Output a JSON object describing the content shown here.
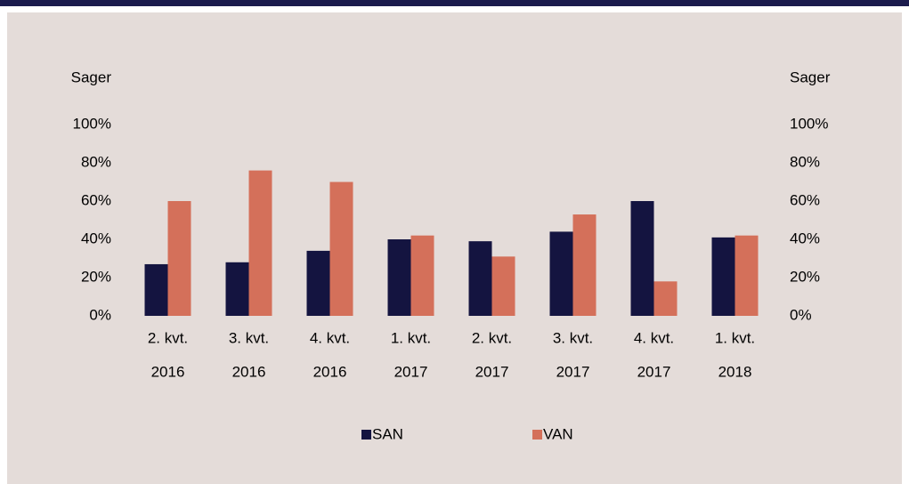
{
  "chart_data": {
    "type": "bar",
    "categories": [
      [
        "2. kvt.",
        "2016"
      ],
      [
        "3. kvt.",
        "2016"
      ],
      [
        "4. kvt.",
        "2016"
      ],
      [
        "1. kvt.",
        "2017"
      ],
      [
        "2. kvt.",
        "2017"
      ],
      [
        "3. kvt.",
        "2017"
      ],
      [
        "4. kvt.",
        "2017"
      ],
      [
        "1. kvt.",
        "2018"
      ]
    ],
    "series": [
      {
        "name": "SAN",
        "color": "#141440",
        "values": [
          27,
          28,
          34,
          40,
          39,
          44,
          60,
          41
        ]
      },
      {
        "name": "VAN",
        "color": "#d4705a",
        "values": [
          60,
          76,
          70,
          42,
          31,
          53,
          18,
          42
        ]
      }
    ],
    "ylabel": "Sager",
    "y2label": "Sager",
    "ylim": [
      0,
      100
    ],
    "yticks": [
      {
        "value": 0,
        "label": "0%"
      },
      {
        "value": 20,
        "label": "20%"
      },
      {
        "value": 40,
        "label": "40%"
      },
      {
        "value": 60,
        "label": "60%"
      },
      {
        "value": 80,
        "label": "80%"
      },
      {
        "value": 100,
        "label": "100%"
      }
    ],
    "y2lim": [
      0,
      100
    ],
    "y2ticks": [
      {
        "value": 0,
        "label": "0%"
      },
      {
        "value": 20,
        "label": "20%"
      },
      {
        "value": 40,
        "label": "40%"
      },
      {
        "value": 60,
        "label": "60%"
      },
      {
        "value": 80,
        "label": "80%"
      },
      {
        "value": 100,
        "label": "100%"
      }
    ],
    "grid": false,
    "legend": "bottom"
  }
}
